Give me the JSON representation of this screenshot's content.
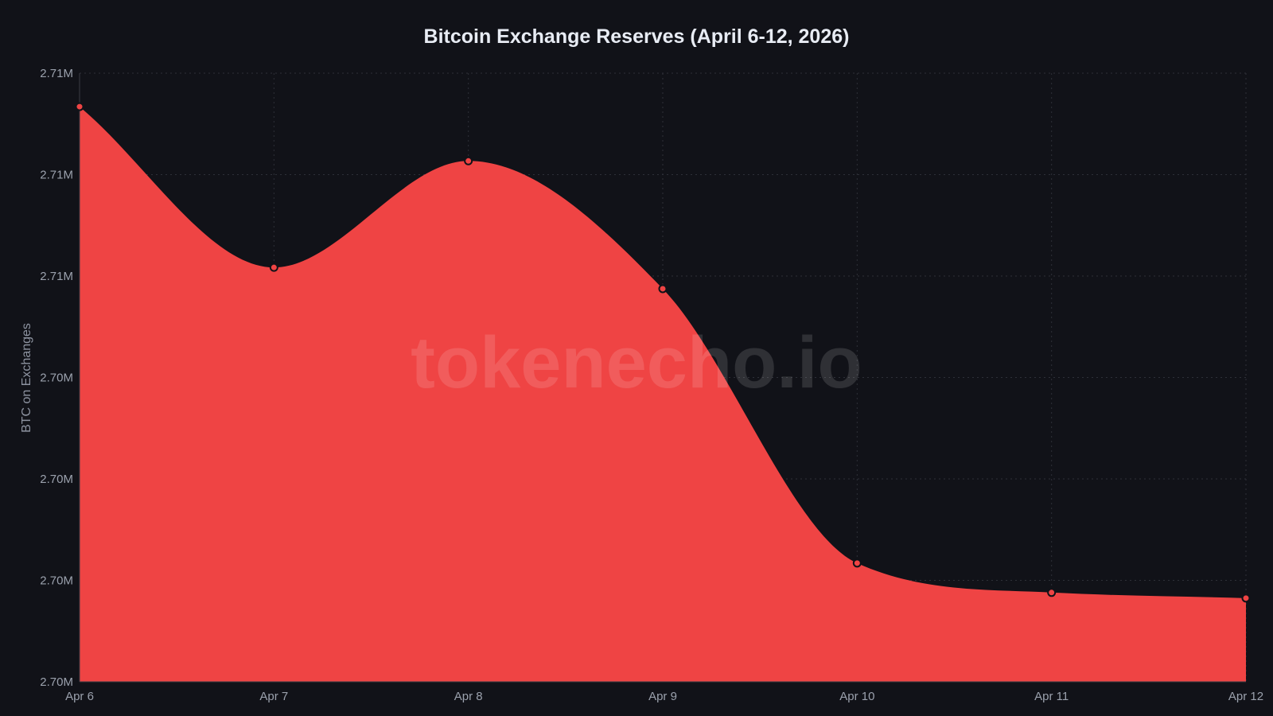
{
  "chart_data": {
    "type": "area",
    "title": "Bitcoin Exchange Reserves (April 6-12, 2026)",
    "xlabel": "",
    "ylabel": "BTC on Exchanges",
    "categories": [
      "Apr 6",
      "Apr 7",
      "Apr 8",
      "Apr 9",
      "Apr 10",
      "Apr 11",
      "Apr 12"
    ],
    "series": [
      {
        "name": "BTC on Exchanges",
        "values": [
          2709340,
          2706170,
          2708270,
          2705750,
          2700340,
          2699760,
          2699650
        ],
        "color": "#ef4444"
      }
    ],
    "ylim": [
      2698000,
      2710000
    ],
    "yticks": [
      2698000,
      2700000,
      2702000,
      2704000,
      2706000,
      2708000,
      2710000
    ],
    "ytick_labels": [
      "2.70M",
      "2.70M",
      "2.70M",
      "2.70M",
      "2.71M",
      "2.71M",
      "2.71M"
    ],
    "grid": true,
    "legend": "none",
    "watermark": "tokenecho.io"
  },
  "colors": {
    "background": "#111218",
    "fill": "#ef4444",
    "grid": "#2e3038",
    "text": "#9ba1ad",
    "title": "#e8ecf4"
  }
}
